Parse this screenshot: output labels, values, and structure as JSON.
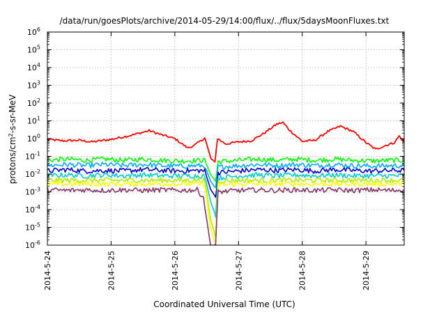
{
  "chart_data": {
    "type": "line",
    "title": "/data/run/goesPlots/archive/2014-05-29/14:00/flux/../flux/5daysMoonFluxes.txt",
    "xlabel": "Coordinated Universal Time (UTC)",
    "ylabel_parts": {
      "base": "protons/cm",
      "sup": "2",
      "tail": "-s-sr-MeV"
    },
    "x_ticks": [
      "2014-5-24",
      "2014-5-25",
      "2014-5-26",
      "2014-5-27",
      "2014-5-28",
      "2014-5-29"
    ],
    "y_tick_exponents": [
      -6,
      -5,
      -4,
      -3,
      -2,
      -1,
      0,
      1,
      2,
      3,
      4,
      5,
      6
    ],
    "y_tick_base": "10",
    "yscale": "log",
    "ylim": [
      1e-06,
      1000000
    ],
    "xlim_days": [
      0,
      5.6
    ],
    "grid": true,
    "legend": "none",
    "gap": {
      "start": 2.49,
      "end": 2.64
    },
    "series": [
      {
        "color": "#ff0000",
        "points": [
          [
            0,
            0.9
          ],
          [
            0.25,
            0.75
          ],
          [
            0.5,
            0.8
          ],
          [
            0.7,
            0.65
          ],
          [
            1.0,
            0.9
          ],
          [
            1.3,
            1.5
          ],
          [
            1.6,
            2.8
          ],
          [
            1.8,
            1.6
          ],
          [
            2.0,
            1.0
          ],
          [
            2.2,
            0.3
          ],
          [
            2.3,
            0.4
          ],
          [
            2.42,
            0.8
          ],
          [
            2.47,
            1.1
          ],
          [
            2.57,
            0.07
          ],
          [
            2.63,
            0.05
          ],
          [
            2.67,
            1.0
          ],
          [
            2.8,
            0.5
          ],
          [
            3.0,
            0.65
          ],
          [
            3.2,
            0.75
          ],
          [
            3.4,
            2.0
          ],
          [
            3.6,
            6.5
          ],
          [
            3.7,
            8.0
          ],
          [
            3.8,
            3.0
          ],
          [
            4.0,
            0.7
          ],
          [
            4.2,
            0.8
          ],
          [
            4.4,
            2.5
          ],
          [
            4.6,
            5.0
          ],
          [
            4.8,
            2.5
          ],
          [
            5.0,
            0.6
          ],
          [
            5.15,
            0.25
          ],
          [
            5.3,
            0.4
          ],
          [
            5.45,
            0.6
          ],
          [
            5.52,
            1.4
          ],
          [
            5.6,
            0.6
          ]
        ]
      },
      {
        "color": "#00ff00",
        "points": [
          [
            0,
            0.06
          ],
          [
            0.3,
            0.07
          ],
          [
            0.6,
            0.06
          ],
          [
            0.9,
            0.07
          ],
          [
            1.2,
            0.06
          ],
          [
            1.5,
            0.07
          ],
          [
            1.8,
            0.06
          ],
          [
            2.1,
            0.055
          ],
          [
            2.4,
            0.06
          ],
          [
            2.47,
            0.06
          ],
          [
            2.56,
            0.01
          ],
          [
            2.64,
            0.004
          ],
          [
            2.68,
            0.05
          ],
          [
            3.0,
            0.06
          ],
          [
            3.3,
            0.07
          ],
          [
            3.6,
            0.06
          ],
          [
            3.9,
            0.07
          ],
          [
            4.2,
            0.06
          ],
          [
            4.5,
            0.07
          ],
          [
            4.8,
            0.06
          ],
          [
            5.1,
            0.055
          ],
          [
            5.4,
            0.06
          ],
          [
            5.6,
            0.06
          ]
        ]
      },
      {
        "color": "#00aaff",
        "points": [
          [
            0,
            0.03
          ],
          [
            0.3,
            0.035
          ],
          [
            0.6,
            0.03
          ],
          [
            0.9,
            0.035
          ],
          [
            1.2,
            0.03
          ],
          [
            1.5,
            0.035
          ],
          [
            1.8,
            0.03
          ],
          [
            2.1,
            0.028
          ],
          [
            2.4,
            0.03
          ],
          [
            2.47,
            0.03
          ],
          [
            2.56,
            0.004
          ],
          [
            2.64,
            0.0015
          ],
          [
            2.68,
            0.025
          ],
          [
            3.0,
            0.03
          ],
          [
            3.3,
            0.035
          ],
          [
            3.6,
            0.03
          ],
          [
            3.9,
            0.035
          ],
          [
            4.2,
            0.03
          ],
          [
            4.5,
            0.035
          ],
          [
            4.8,
            0.03
          ],
          [
            5.1,
            0.028
          ],
          [
            5.4,
            0.03
          ],
          [
            5.6,
            0.03
          ]
        ]
      },
      {
        "color": "#0000cc",
        "points": [
          [
            0,
            0.015
          ],
          [
            0.3,
            0.018
          ],
          [
            0.6,
            0.015
          ],
          [
            0.9,
            0.016
          ],
          [
            1.2,
            0.015
          ],
          [
            1.5,
            0.018
          ],
          [
            1.8,
            0.016
          ],
          [
            2.1,
            0.015
          ],
          [
            2.4,
            0.016
          ],
          [
            2.47,
            0.015
          ],
          [
            2.56,
            0.0015
          ],
          [
            2.64,
            0.0005
          ],
          [
            2.68,
            0.012
          ],
          [
            3.0,
            0.015
          ],
          [
            3.3,
            0.018
          ],
          [
            3.6,
            0.016
          ],
          [
            3.9,
            0.018
          ],
          [
            4.2,
            0.015
          ],
          [
            4.5,
            0.018
          ],
          [
            4.8,
            0.016
          ],
          [
            5.1,
            0.015
          ],
          [
            5.4,
            0.016
          ],
          [
            5.6,
            0.016
          ]
        ]
      },
      {
        "color": "#00cccc",
        "points": [
          [
            0,
            0.008
          ],
          [
            0.3,
            0.009
          ],
          [
            0.6,
            0.008
          ],
          [
            0.9,
            0.009
          ],
          [
            1.2,
            0.008
          ],
          [
            1.5,
            0.009
          ],
          [
            1.8,
            0.008
          ],
          [
            2.1,
            0.008
          ],
          [
            2.4,
            0.008
          ],
          [
            2.47,
            0.008
          ],
          [
            2.56,
            0.0003
          ],
          [
            2.64,
            5e-05
          ],
          [
            2.68,
            0.006
          ],
          [
            3.0,
            0.008
          ],
          [
            3.3,
            0.009
          ],
          [
            3.6,
            0.008
          ],
          [
            3.9,
            0.009
          ],
          [
            4.2,
            0.008
          ],
          [
            4.5,
            0.009
          ],
          [
            4.8,
            0.008
          ],
          [
            5.1,
            0.008
          ],
          [
            5.4,
            0.008
          ],
          [
            5.6,
            0.008
          ]
        ]
      },
      {
        "color": "#aaee00",
        "points": [
          [
            0,
            0.0045
          ],
          [
            0.5,
            0.0045
          ],
          [
            1.0,
            0.0045
          ],
          [
            1.5,
            0.0045
          ],
          [
            2.0,
            0.0045
          ],
          [
            2.47,
            0.0045
          ],
          [
            2.56,
            3e-05
          ],
          [
            2.64,
            3e-06
          ],
          [
            2.68,
            0.004
          ],
          [
            3.0,
            0.0045
          ],
          [
            3.5,
            0.0045
          ],
          [
            4.0,
            0.0045
          ],
          [
            4.5,
            0.0045
          ],
          [
            5.0,
            0.0045
          ],
          [
            5.6,
            0.0045
          ]
        ]
      },
      {
        "color": "#ffff00",
        "points": [
          [
            0,
            0.0028
          ],
          [
            0.5,
            0.0028
          ],
          [
            1.0,
            0.0028
          ],
          [
            1.5,
            0.0028
          ],
          [
            2.0,
            0.0028
          ],
          [
            2.47,
            0.0028
          ],
          [
            2.56,
            1e-05
          ],
          [
            2.64,
            1e-06
          ],
          [
            2.68,
            0.0025
          ],
          [
            3.0,
            0.0028
          ],
          [
            3.5,
            0.0028
          ],
          [
            4.0,
            0.0028
          ],
          [
            4.5,
            0.0028
          ],
          [
            5.0,
            0.0028
          ],
          [
            5.6,
            0.0028
          ]
        ]
      },
      {
        "color": "#883366",
        "points": [
          [
            0,
            0.0013
          ],
          [
            0.3,
            0.0012
          ],
          [
            0.6,
            0.0013
          ],
          [
            0.9,
            0.0012
          ],
          [
            1.2,
            0.0013
          ],
          [
            1.5,
            0.0012
          ],
          [
            1.8,
            0.0013
          ],
          [
            2.1,
            0.0012
          ],
          [
            2.35,
            0.0013
          ],
          [
            2.45,
            0.0005
          ],
          [
            2.56,
            1e-06
          ],
          [
            2.64,
            1e-06
          ],
          [
            2.68,
            0.001
          ],
          [
            3.0,
            0.0012
          ],
          [
            3.3,
            0.0013
          ],
          [
            3.6,
            0.0012
          ],
          [
            3.9,
            0.0013
          ],
          [
            4.2,
            0.0012
          ],
          [
            4.5,
            0.0013
          ],
          [
            4.8,
            0.0012
          ],
          [
            5.1,
            0.0013
          ],
          [
            5.4,
            0.0012
          ],
          [
            5.6,
            0.0013
          ]
        ]
      }
    ]
  }
}
